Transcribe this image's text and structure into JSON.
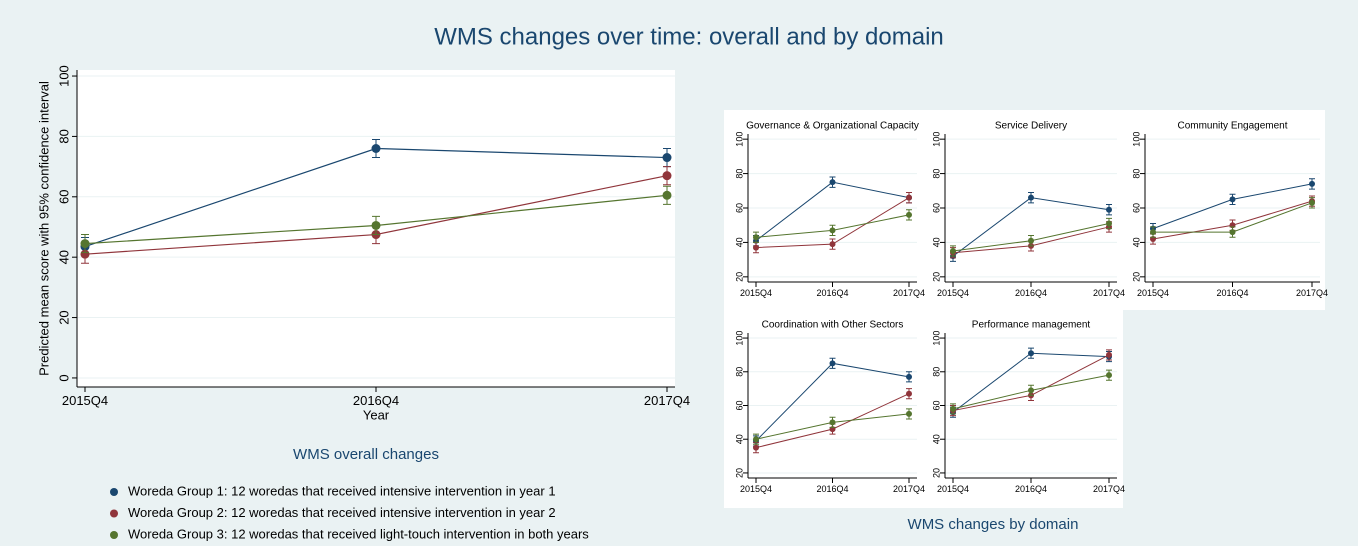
{
  "title": "WMS changes over time: overall and by domain",
  "domain_caption": "WMS changes by domain",
  "chart_data": [
    {
      "type": "line",
      "caption": "WMS overall changes",
      "x_label": "Year",
      "y_label": "Predicted mean score with 95% confidence interval",
      "categories": [
        "2015Q4",
        "2016Q4",
        "2017Q4"
      ],
      "ylim": [
        -3,
        102
      ],
      "yticks": [
        0,
        20,
        40,
        60,
        80,
        100
      ],
      "grid": true,
      "series": [
        {
          "name": "Woreda Group 1: 12 woredas that received intensive intervention in year 1",
          "color": "#1a476f",
          "values": [
            43.5,
            76,
            73
          ],
          "errors": [
            3,
            3,
            3
          ]
        },
        {
          "name": "Woreda Group 2: 12 woredas that received intensive intervention in year 2",
          "color": "#90353b",
          "values": [
            41,
            47.5,
            67
          ],
          "errors": [
            3,
            3,
            3
          ]
        },
        {
          "name": "Woreda Group 3: 12 woredas that received light-touch intervention in both years",
          "color": "#55752f",
          "values": [
            44.5,
            50.5,
            60.5
          ],
          "errors": [
            3,
            3,
            3
          ]
        }
      ]
    },
    {
      "type": "line",
      "title": "Governance & Organizational Capacity",
      "categories": [
        "2015Q4",
        "2016Q4",
        "2017Q4"
      ],
      "ylim": [
        17,
        103
      ],
      "yticks": [
        20,
        40,
        60,
        80,
        100
      ],
      "grid": true,
      "series": [
        {
          "color": "#1a476f",
          "values": [
            41,
            75,
            66
          ],
          "errors": [
            3,
            3,
            3
          ]
        },
        {
          "color": "#90353b",
          "values": [
            37,
            39,
            66
          ],
          "errors": [
            3,
            3,
            3
          ]
        },
        {
          "color": "#55752f",
          "values": [
            43,
            47,
            56
          ],
          "errors": [
            3,
            3,
            3
          ]
        }
      ]
    },
    {
      "type": "line",
      "title": "Service Delivery",
      "categories": [
        "2015Q4",
        "2016Q4",
        "2017Q4"
      ],
      "ylim": [
        17,
        103
      ],
      "yticks": [
        20,
        40,
        60,
        80,
        100
      ],
      "grid": true,
      "series": [
        {
          "color": "#1a476f",
          "values": [
            32,
            66,
            59
          ],
          "errors": [
            3,
            3,
            3
          ]
        },
        {
          "color": "#90353b",
          "values": [
            34,
            38,
            49
          ],
          "errors": [
            3,
            3,
            3
          ]
        },
        {
          "color": "#55752f",
          "values": [
            35,
            41,
            51
          ],
          "errors": [
            3,
            3,
            3
          ]
        }
      ]
    },
    {
      "type": "line",
      "title": "Community Engagement",
      "categories": [
        "2015Q4",
        "2016Q4",
        "2017Q4"
      ],
      "ylim": [
        17,
        103
      ],
      "yticks": [
        20,
        40,
        60,
        80,
        100
      ],
      "grid": true,
      "series": [
        {
          "color": "#1a476f",
          "values": [
            48,
            65,
            74
          ],
          "errors": [
            3,
            3,
            3
          ]
        },
        {
          "color": "#90353b",
          "values": [
            42,
            50,
            64
          ],
          "errors": [
            3,
            3,
            3
          ]
        },
        {
          "color": "#55752f",
          "values": [
            46,
            46,
            63
          ],
          "errors": [
            3,
            3,
            3
          ]
        }
      ]
    },
    {
      "type": "line",
      "title": "Coordination with Other Sectors",
      "categories": [
        "2015Q4",
        "2016Q4",
        "2017Q4"
      ],
      "ylim": [
        17,
        103
      ],
      "yticks": [
        20,
        40,
        60,
        80,
        100
      ],
      "grid": true,
      "series": [
        {
          "color": "#1a476f",
          "values": [
            39,
            85,
            77
          ],
          "errors": [
            3,
            3,
            3
          ]
        },
        {
          "color": "#90353b",
          "values": [
            35,
            46,
            67
          ],
          "errors": [
            3,
            3,
            3
          ]
        },
        {
          "color": "#55752f",
          "values": [
            40,
            50,
            55
          ],
          "errors": [
            3,
            3,
            3
          ]
        }
      ]
    },
    {
      "type": "line",
      "title": "Performance management",
      "categories": [
        "2015Q4",
        "2016Q4",
        "2017Q4"
      ],
      "ylim": [
        17,
        103
      ],
      "yticks": [
        20,
        40,
        60,
        80,
        100
      ],
      "grid": true,
      "series": [
        {
          "color": "#1a476f",
          "values": [
            56,
            91,
            89
          ],
          "errors": [
            3,
            3,
            3
          ]
        },
        {
          "color": "#90353b",
          "values": [
            57,
            66,
            90
          ],
          "errors": [
            3,
            3,
            3
          ]
        },
        {
          "color": "#55752f",
          "values": [
            58,
            69,
            78
          ],
          "errors": [
            3,
            3,
            3
          ]
        }
      ]
    }
  ]
}
